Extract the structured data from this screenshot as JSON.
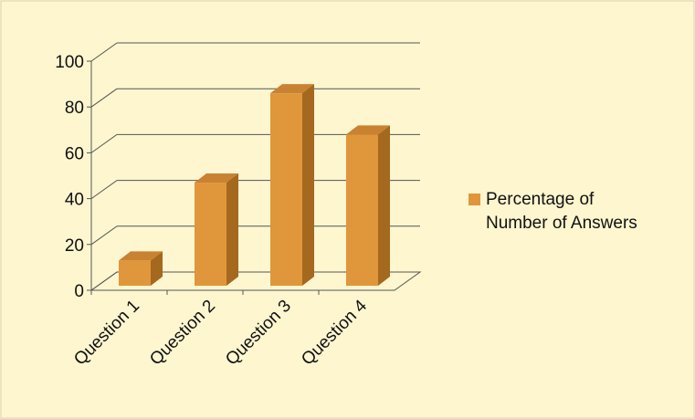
{
  "chart_data": {
    "type": "bar3d",
    "categories": [
      "Question 1",
      "Question 2",
      "Question 3",
      "Question 4"
    ],
    "series": [
      {
        "name": "Percentage of Number of Answers",
        "color": "#e0963a",
        "values": [
          11,
          45,
          84,
          66
        ]
      }
    ],
    "ylim": [
      0,
      100
    ],
    "yticks": [
      0,
      20,
      40,
      60,
      80,
      100
    ],
    "grid": true,
    "legend": "right"
  }
}
